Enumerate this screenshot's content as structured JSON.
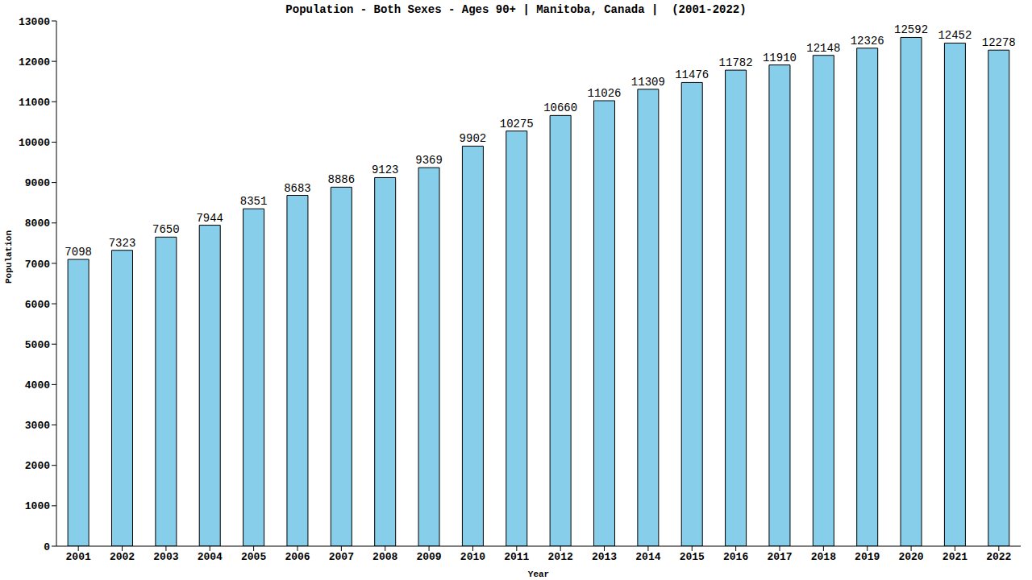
{
  "chart_data": {
    "type": "bar",
    "title": "Population - Both Sexes - Ages 90+ | Manitoba, Canada |  (2001-2022)",
    "x_label": "Year",
    "y_label": "Population",
    "categories": [
      "2001",
      "2002",
      "2003",
      "2004",
      "2005",
      "2006",
      "2007",
      "2008",
      "2009",
      "2010",
      "2011",
      "2012",
      "2013",
      "2014",
      "2015",
      "2016",
      "2017",
      "2018",
      "2019",
      "2020",
      "2021",
      "2022"
    ],
    "values": [
      7098,
      7323,
      7650,
      7944,
      8351,
      8683,
      8886,
      9123,
      9369,
      9902,
      10275,
      10660,
      11026,
      11309,
      11476,
      11782,
      11910,
      12148,
      12326,
      12592,
      12452,
      12278
    ],
    "color": "#87ceeb",
    "ylim": [
      0,
      13000
    ],
    "yticks": [
      0,
      1000,
      2000,
      3000,
      4000,
      5000,
      6000,
      7000,
      8000,
      9000,
      10000,
      11000,
      12000,
      13000
    ],
    "grid": false,
    "data_labels": true
  }
}
